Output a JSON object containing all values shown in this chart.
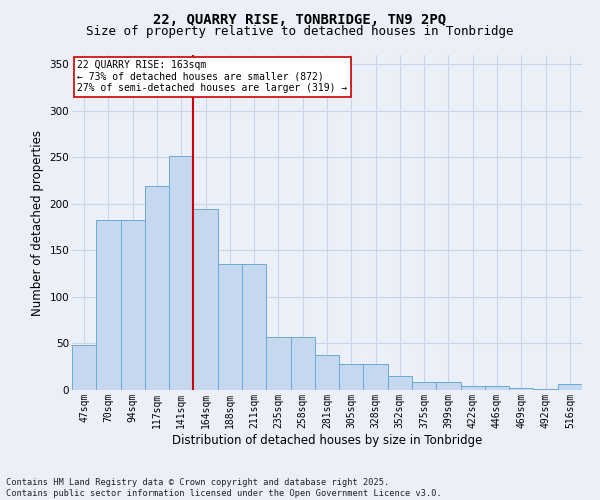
{
  "title": "22, QUARRY RISE, TONBRIDGE, TN9 2PQ",
  "subtitle": "Size of property relative to detached houses in Tonbridge",
  "xlabel": "Distribution of detached houses by size in Tonbridge",
  "ylabel": "Number of detached properties",
  "bins": [
    "47sqm",
    "70sqm",
    "94sqm",
    "117sqm",
    "141sqm",
    "164sqm",
    "188sqm",
    "211sqm",
    "235sqm",
    "258sqm",
    "281sqm",
    "305sqm",
    "328sqm",
    "352sqm",
    "375sqm",
    "399sqm",
    "422sqm",
    "446sqm",
    "469sqm",
    "492sqm",
    "516sqm"
  ],
  "values": [
    48,
    183,
    183,
    219,
    252,
    195,
    135,
    135,
    57,
    57,
    38,
    28,
    28,
    15,
    9,
    9,
    4,
    4,
    2,
    1,
    6
  ],
  "bar_color": "#c5d8ef",
  "bar_edge_color": "#6aaad4",
  "grid_color": "#c8d4e8",
  "bg_color": "#eaeff8",
  "vline_color": "#cc0000",
  "annotation_text": "22 QUARRY RISE: 163sqm\n← 73% of detached houses are smaller (872)\n27% of semi-detached houses are larger (319) →",
  "annotation_box_color": "#ffffff",
  "annotation_box_edge": "#cc0000",
  "footer": "Contains HM Land Registry data © Crown copyright and database right 2025.\nContains public sector information licensed under the Open Government Licence v3.0.",
  "ylim": [
    0,
    360
  ],
  "yticks": [
    0,
    50,
    100,
    150,
    200,
    250,
    300,
    350
  ],
  "title_fontsize": 10,
  "subtitle_fontsize": 9,
  "tick_fontsize": 7,
  "label_fontsize": 8.5
}
